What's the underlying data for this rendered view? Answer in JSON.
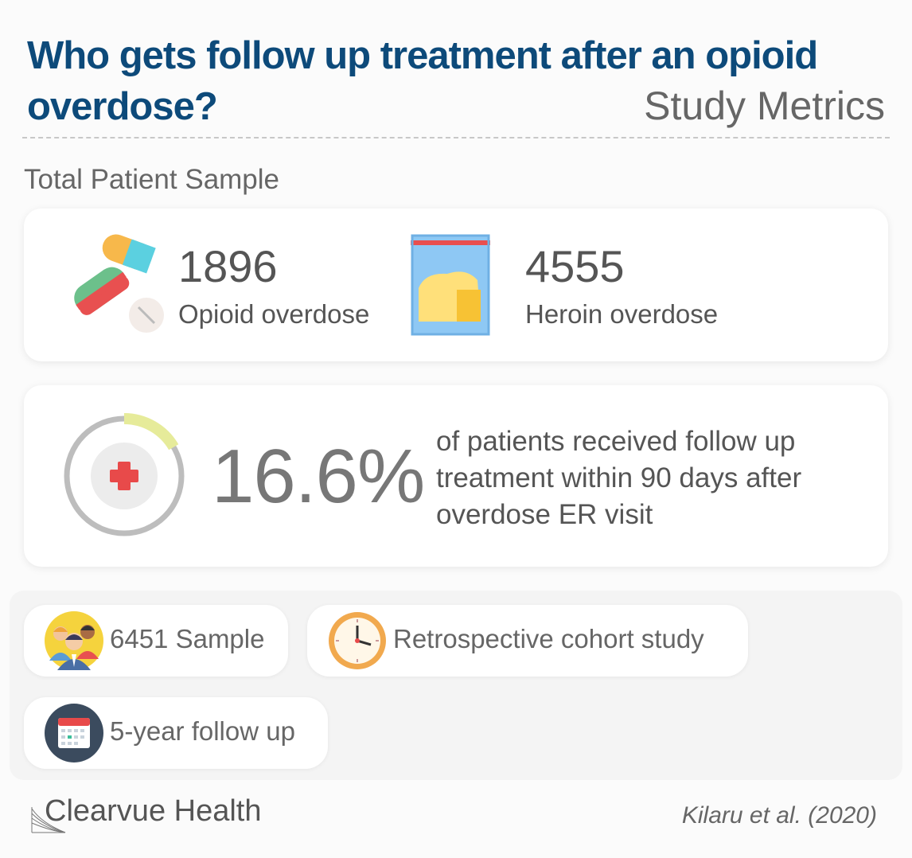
{
  "header": {
    "title": "Who gets follow up treatment after an opioid overdose?",
    "subtitle": "Study Metrics"
  },
  "sample_section": {
    "label": "Total Patient Sample",
    "stats": [
      {
        "value": "1896",
        "label": "Opioid overdose",
        "icon": "pills-icon"
      },
      {
        "value": "4555",
        "label": "Heroin overdose",
        "icon": "powder-bag-icon"
      }
    ]
  },
  "treatment": {
    "percent_text": "16.6%",
    "percent_value": 16.6,
    "description": "of patients received follow up treatment within 90 days after overdose ER visit",
    "icon": "medical-cross-icon",
    "ring_color": "#bdbdbd",
    "arc_color": "#e6eb9a",
    "cross_color": "#e84a4a"
  },
  "metrics": [
    {
      "text": "6451 Sample",
      "icon": "people-icon"
    },
    {
      "text": "Retrospective cohort study",
      "icon": "clock-icon"
    },
    {
      "text": "5-year follow up",
      "icon": "calendar-icon"
    }
  ],
  "footer": {
    "brand": "Clearvue Health",
    "citation": "Kilaru et al. (2020)"
  }
}
